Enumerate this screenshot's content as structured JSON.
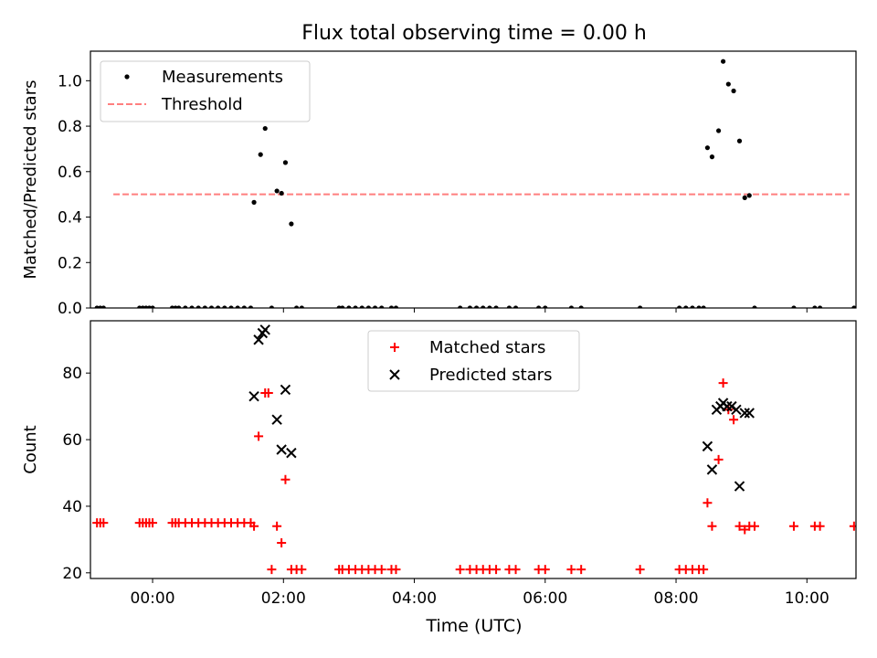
{
  "figure": {
    "title": "Flux total observing time = 0.00 h",
    "xlabel": "Time (UTC)"
  },
  "chart_data": [
    {
      "type": "scatter",
      "panel": "top",
      "ylabel": "Matched/Predicted stars",
      "xlim": [
        -0.95,
        10.75
      ],
      "ylim": [
        0,
        1.13
      ],
      "yticks": [
        0.0,
        0.2,
        0.4,
        0.6,
        0.8,
        1.0
      ],
      "ytick_labels": [
        "0.0",
        "0.2",
        "0.4",
        "0.6",
        "0.8",
        "1.0"
      ],
      "legend": {
        "placement": "upper-left",
        "entries": [
          "Measurements",
          "Threshold"
        ]
      },
      "grid": false,
      "threshold": {
        "name": "Threshold",
        "y": 0.5,
        "x_start": -0.6,
        "x_end": 10.65,
        "color": "#ff7f7f",
        "style": "dashed"
      },
      "series": [
        {
          "name": "Measurements",
          "color": "#000000",
          "marker": "dot",
          "x": [
            -0.85,
            -0.8,
            -0.75,
            -0.2,
            -0.15,
            -0.1,
            -0.05,
            0.0,
            0.3,
            0.35,
            0.4,
            0.5,
            0.6,
            0.7,
            0.8,
            0.9,
            1.0,
            1.1,
            1.2,
            1.3,
            1.4,
            1.5,
            1.55,
            1.65,
            1.72,
            1.82,
            1.9,
            1.97,
            2.03,
            2.12,
            2.2,
            2.28,
            2.85,
            2.9,
            3.0,
            3.1,
            3.2,
            3.3,
            3.4,
            3.5,
            3.65,
            3.72,
            4.7,
            4.85,
            4.95,
            5.05,
            5.15,
            5.25,
            5.45,
            5.55,
            5.9,
            6.0,
            6.4,
            6.55,
            7.45,
            8.05,
            8.15,
            8.25,
            8.35,
            8.42,
            8.48,
            8.55,
            8.65,
            8.72,
            8.8,
            8.88,
            8.97,
            9.05,
            9.12,
            9.2,
            9.8,
            10.12,
            10.2,
            10.72
          ],
          "y": [
            0,
            0,
            0,
            0,
            0,
            0,
            0,
            0,
            0,
            0,
            0,
            0,
            0,
            0,
            0,
            0,
            0,
            0,
            0,
            0,
            0,
            0,
            0.465,
            0.675,
            0.79,
            0,
            0.515,
            0.505,
            0.64,
            0.37,
            0,
            0,
            0,
            0,
            0,
            0,
            0,
            0,
            0,
            0,
            0,
            0,
            0,
            0,
            0,
            0,
            0,
            0,
            0,
            0,
            0,
            0,
            0,
            0,
            0,
            0,
            0,
            0,
            0,
            0,
            0.705,
            0.665,
            0.78,
            1.085,
            0.985,
            0.955,
            0.735,
            0.485,
            0.495,
            0,
            0,
            0,
            0,
            0
          ]
        }
      ]
    },
    {
      "type": "scatter",
      "panel": "bottom",
      "ylabel": "Count",
      "xlabel": "Time (UTC)",
      "xlim": [
        -0.95,
        10.75
      ],
      "ylim": [
        18.3,
        95.7
      ],
      "xticks": [
        0,
        2,
        4,
        6,
        8,
        10
      ],
      "xtick_labels": [
        "00:00",
        "02:00",
        "04:00",
        "06:00",
        "08:00",
        "10:00"
      ],
      "yticks": [
        20,
        40,
        60,
        80
      ],
      "ytick_labels": [
        "20",
        "40",
        "60",
        "80"
      ],
      "legend": {
        "placement": "upper-center",
        "entries": [
          "Matched stars",
          "Predicted stars"
        ]
      },
      "grid": false,
      "series": [
        {
          "name": "Matched stars",
          "color": "#ff0000",
          "marker": "plus",
          "x": [
            -0.85,
            -0.8,
            -0.75,
            -0.2,
            -0.15,
            -0.1,
            -0.05,
            0.0,
            0.3,
            0.35,
            0.4,
            0.5,
            0.6,
            0.7,
            0.8,
            0.9,
            1.0,
            1.1,
            1.2,
            1.3,
            1.4,
            1.5,
            1.55,
            1.62,
            1.72,
            1.77,
            1.82,
            1.9,
            1.97,
            2.03,
            2.12,
            2.2,
            2.28,
            2.85,
            2.9,
            3.0,
            3.1,
            3.2,
            3.3,
            3.4,
            3.5,
            3.65,
            3.72,
            4.7,
            4.85,
            4.95,
            5.05,
            5.15,
            5.25,
            5.45,
            5.55,
            5.9,
            6.0,
            6.4,
            6.55,
            7.45,
            8.05,
            8.15,
            8.25,
            8.35,
            8.42,
            8.48,
            8.55,
            8.65,
            8.72,
            8.8,
            8.88,
            8.97,
            9.05,
            9.12,
            9.2,
            9.8,
            10.12,
            10.2,
            10.72
          ],
          "y": [
            35,
            35,
            35,
            35,
            35,
            35,
            35,
            35,
            35,
            35,
            35,
            35,
            35,
            35,
            35,
            35,
            35,
            35,
            35,
            35,
            35,
            35,
            34,
            61,
            74,
            74,
            21,
            34,
            29,
            48,
            21,
            21,
            21,
            21,
            21,
            21,
            21,
            21,
            21,
            21,
            21,
            21,
            21,
            21,
            21,
            21,
            21,
            21,
            21,
            21,
            21,
            21,
            21,
            21,
            21,
            21,
            21,
            21,
            21,
            21,
            21,
            41,
            34,
            54,
            77,
            69,
            66,
            34,
            33,
            34,
            34,
            34,
            34,
            34,
            34
          ]
        },
        {
          "name": "Predicted stars",
          "color": "#000000",
          "marker": "x",
          "x": [
            1.55,
            1.62,
            1.68,
            1.72,
            1.9,
            1.97,
            2.03,
            2.12,
            8.48,
            8.55,
            8.62,
            8.68,
            8.72,
            8.78,
            8.85,
            8.92,
            8.97,
            9.05,
            9.12
          ],
          "y": [
            73,
            90,
            92,
            93,
            66,
            57,
            75,
            56,
            58,
            51,
            69,
            70,
            71,
            70,
            70,
            69,
            46,
            68,
            68
          ]
        }
      ]
    }
  ]
}
